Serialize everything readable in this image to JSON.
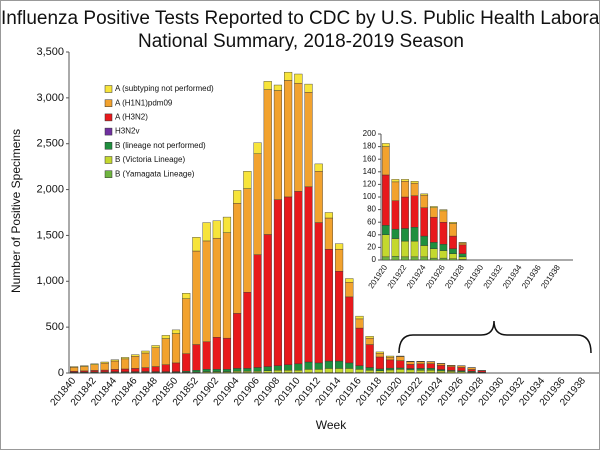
{
  "chart_data": [
    {
      "type": "bar",
      "stacked": true,
      "title": [
        "Influenza Positive Tests Reported to CDC by U.S. Public Health Laboratories,",
        "National Summary, 2018-2019 Season"
      ],
      "x_label": "Week",
      "y_label": "Number of Positive Specimens",
      "categories": [
        "201840",
        null,
        "201842",
        null,
        "201844",
        null,
        "201846",
        null,
        "201848",
        null,
        "201850",
        null,
        "201852",
        null,
        "201902",
        null,
        "201904",
        null,
        "201906",
        null,
        "201908",
        null,
        "201910",
        null,
        "201912",
        null,
        "201914",
        null,
        "201916",
        null,
        "201918",
        null,
        "201920",
        null,
        "201922",
        null,
        "201924",
        null,
        "201926",
        null,
        "201928",
        null,
        "201930",
        null,
        "201932",
        null,
        "201934",
        null,
        "201936",
        null,
        "201938",
        null
      ],
      "ylim": [
        0,
        3500
      ],
      "yticks": [
        0,
        500,
        {
          "value": 1000,
          "label": "1,000"
        },
        {
          "value": 1500,
          "label": "1,500"
        },
        {
          "value": 2000,
          "label": "2,000"
        },
        {
          "value": 2500,
          "label": "2,500"
        },
        {
          "value": 3000,
          "label": "3,000"
        },
        {
          "value": 3500,
          "label": "3,500"
        }
      ],
      "legend": "upper left",
      "series": [
        {
          "name": "A (subtyping not performed)",
          "color": "#f7e43a",
          "values": [
            8,
            9,
            10,
            12,
            14,
            16,
            18,
            22,
            25,
            35,
            40,
            60,
            150,
            200,
            190,
            170,
            140,
            190,
            120,
            90,
            60,
            90,
            100,
            90,
            80,
            60,
            60,
            40,
            30,
            20,
            15,
            12,
            5,
            4,
            3,
            3,
            2,
            2,
            2,
            2,
            1,
            0,
            0,
            0,
            0,
            0,
            0,
            0,
            0,
            0,
            0,
            0
          ]
        },
        {
          "name": "A (H1N1)pdm09",
          "color": "#f2a22e",
          "values": [
            42,
            48,
            62,
            76,
            92,
            110,
            132,
            160,
            205,
            285,
            320,
            600,
            1020,
            1100,
            1080,
            1150,
            1200,
            1130,
            1100,
            1580,
            1190,
            1270,
            1180,
            1030,
            560,
            340,
            240,
            160,
            100,
            70,
            40,
            30,
            45,
            30,
            25,
            20,
            20,
            15,
            18,
            20,
            3,
            0,
            0,
            0,
            0,
            0,
            0,
            0,
            0,
            0,
            0,
            0
          ]
        },
        {
          "name": "A (H3N2)",
          "color": "#e8191c",
          "values": [
            10,
            12,
            16,
            20,
            25,
            30,
            35,
            42,
            55,
            75,
            95,
            190,
            280,
            300,
            350,
            340,
            600,
            830,
            1230,
            1440,
            1810,
            1830,
            1880,
            1910,
            1530,
            1220,
            980,
            720,
            410,
            250,
            130,
            90,
            80,
            45,
            50,
            50,
            45,
            40,
            35,
            20,
            14,
            0,
            0,
            0,
            0,
            0,
            0,
            0,
            0,
            0,
            0,
            0
          ]
        },
        {
          "name": "H3N2v",
          "color": "#7030a0",
          "values": [
            0,
            0,
            0,
            0,
            0,
            0,
            0,
            0,
            0,
            0,
            0,
            0,
            0,
            0,
            0,
            0,
            0,
            0,
            0,
            0,
            0,
            0,
            0,
            0,
            0,
            0,
            0,
            0,
            0,
            0,
            0,
            0,
            0,
            0,
            0,
            0,
            0,
            0,
            0,
            0,
            0,
            0,
            0,
            0,
            0,
            0,
            0,
            0,
            0,
            0,
            0,
            0
          ]
        },
        {
          "name": "B (lineage not performed)",
          "color": "#1f8f3e",
          "values": [
            4,
            5,
            6,
            6,
            7,
            7,
            8,
            9,
            8,
            8,
            8,
            12,
            20,
            25,
            25,
            25,
            30,
            30,
            40,
            45,
            50,
            60,
            70,
            80,
            70,
            80,
            80,
            60,
            40,
            30,
            20,
            20,
            15,
            15,
            20,
            22,
            15,
            10,
            10,
            8,
            5,
            0,
            0,
            0,
            0,
            0,
            0,
            0,
            0,
            0,
            0,
            0
          ]
        },
        {
          "name": "B (Victoria Lineage)",
          "color": "#c4d82e",
          "values": [
            3,
            3,
            3,
            3,
            4,
            4,
            4,
            4,
            4,
            4,
            4,
            5,
            6,
            10,
            10,
            10,
            15,
            15,
            15,
            20,
            25,
            25,
            25,
            35,
            35,
            45,
            45,
            45,
            35,
            25,
            20,
            28,
            35,
            28,
            25,
            25,
            18,
            15,
            12,
            8,
            4,
            0,
            0,
            0,
            0,
            0,
            0,
            0,
            0,
            0,
            0,
            0
          ]
        },
        {
          "name": "B (Yamagata Lineage)",
          "color": "#6fb53f",
          "values": [
            3,
            3,
            3,
            3,
            3,
            3,
            3,
            3,
            3,
            3,
            3,
            3,
            4,
            5,
            5,
            5,
            5,
            5,
            5,
            5,
            5,
            5,
            5,
            5,
            5,
            5,
            5,
            5,
            5,
            5,
            5,
            5,
            5,
            6,
            5,
            5,
            5,
            3,
            3,
            2,
            1,
            0,
            0,
            0,
            0,
            0,
            0,
            0,
            0,
            0,
            0,
            0
          ]
        }
      ]
    },
    {
      "type": "bar",
      "stacked": true,
      "categories": [
        "201920",
        null,
        "201922",
        null,
        "201924",
        null,
        "201926",
        null,
        "201928",
        null,
        "201930",
        null,
        "201932",
        null,
        "201934",
        null,
        "201936",
        null,
        "201938",
        null
      ],
      "ylim": [
        0,
        200
      ],
      "yticks": [
        0,
        20,
        40,
        60,
        80,
        100,
        120,
        140,
        160,
        180,
        200
      ],
      "series": [
        {
          "color": "#f7e43a",
          "values": [
            5,
            4,
            3,
            3,
            2,
            2,
            2,
            2,
            1,
            0,
            0,
            0,
            0,
            0,
            0,
            0,
            0,
            0,
            0,
            0
          ]
        },
        {
          "color": "#f2a22e",
          "values": [
            45,
            30,
            25,
            20,
            20,
            15,
            18,
            20,
            3,
            0,
            0,
            0,
            0,
            0,
            0,
            0,
            0,
            0,
            0,
            0
          ]
        },
        {
          "color": "#e8191c",
          "values": [
            80,
            45,
            50,
            50,
            45,
            40,
            35,
            20,
            14,
            0,
            0,
            0,
            0,
            0,
            0,
            0,
            0,
            0,
            0,
            0
          ]
        },
        {
          "color": "#7030a0",
          "values": [
            0,
            0,
            0,
            0,
            0,
            0,
            0,
            0,
            0,
            0,
            0,
            0,
            0,
            0,
            0,
            0,
            0,
            0,
            0,
            0
          ]
        },
        {
          "color": "#1f8f3e",
          "values": [
            15,
            15,
            20,
            22,
            15,
            10,
            10,
            8,
            5,
            0,
            0,
            0,
            0,
            0,
            0,
            0,
            0,
            0,
            0,
            0
          ]
        },
        {
          "color": "#c4d82e",
          "values": [
            35,
            28,
            25,
            25,
            18,
            15,
            12,
            8,
            4,
            0,
            0,
            0,
            0,
            0,
            0,
            0,
            0,
            0,
            0,
            0
          ]
        },
        {
          "color": "#6fb53f",
          "values": [
            5,
            6,
            5,
            5,
            5,
            3,
            3,
            2,
            1,
            0,
            0,
            0,
            0,
            0,
            0,
            0,
            0,
            0,
            0,
            0
          ]
        }
      ]
    }
  ]
}
